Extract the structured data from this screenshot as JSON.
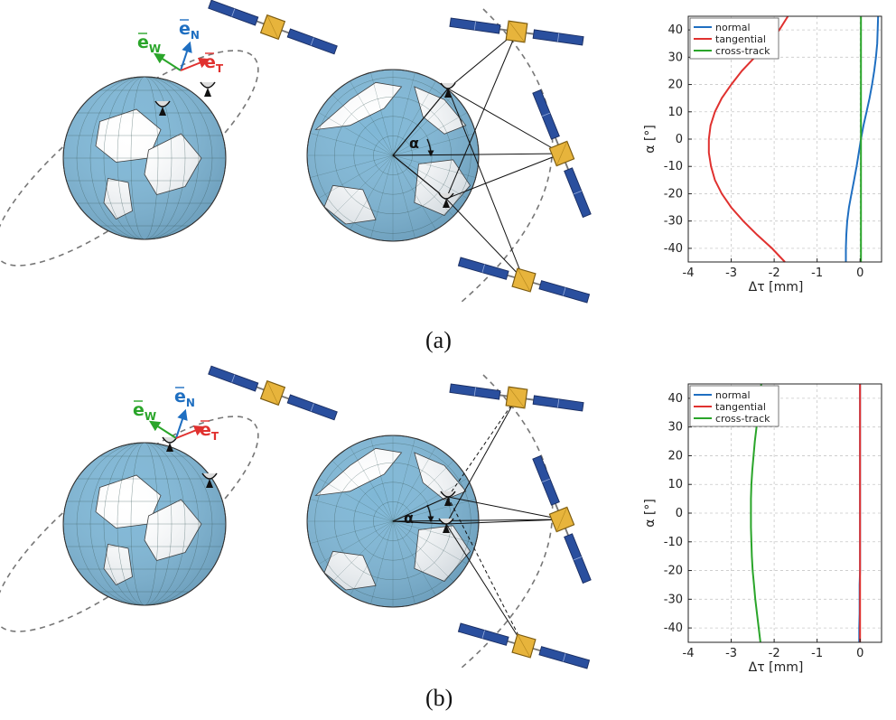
{
  "panels": [
    {
      "label": "(a)",
      "vector_labels": {
        "w": "W",
        "n": "N",
        "t": "T",
        "e": "e"
      },
      "angle_label": "α"
    },
    {
      "label": "(b)",
      "vector_labels": {
        "w": "W",
        "n": "N",
        "t": "T",
        "e": "e"
      },
      "angle_label": "α"
    }
  ],
  "colors": {
    "normal": "#1f6fc1",
    "tangential": "#e0312f",
    "cross_track": "#2aa52a",
    "ocean": "#7fb7d6",
    "panel": "#2a4f9e",
    "sat_body": "#e7b43c"
  },
  "chart_data": [
    {
      "type": "line",
      "xlabel": "Δτ [mm]",
      "ylabel": "α [°]",
      "xlim": [
        -4,
        0.5
      ],
      "ylim": [
        -45,
        45
      ],
      "xticks": [
        -4,
        -3,
        -2,
        -1,
        0
      ],
      "yticks": [
        40,
        30,
        20,
        10,
        0,
        -10,
        -20,
        -30,
        -40
      ],
      "grid": true,
      "legend_position": "top-left",
      "y": [
        -45,
        -40,
        -35,
        -30,
        -25,
        -20,
        -15,
        -10,
        -5,
        0,
        5,
        10,
        15,
        20,
        25,
        30,
        35,
        40,
        45
      ],
      "series": [
        {
          "name": "normal",
          "color_key": "normal",
          "x": [
            -0.33,
            -0.33,
            -0.32,
            -0.3,
            -0.26,
            -0.2,
            -0.14,
            -0.08,
            -0.03,
            0.02,
            0.08,
            0.15,
            0.22,
            0.28,
            0.33,
            0.37,
            0.4,
            0.41,
            0.42
          ]
        },
        {
          "name": "tangential",
          "color_key": "tangential",
          "x": [
            -1.75,
            -2.05,
            -2.4,
            -2.72,
            -3.0,
            -3.22,
            -3.38,
            -3.47,
            -3.52,
            -3.52,
            -3.48,
            -3.38,
            -3.22,
            -3.0,
            -2.75,
            -2.45,
            -2.15,
            -1.88,
            -1.68
          ]
        },
        {
          "name": "cross-track",
          "color_key": "cross_track",
          "x": [
            0.02,
            0.02,
            0.02,
            0.02,
            0.02,
            0.02,
            0.02,
            0.02,
            0.02,
            0.02,
            0.02,
            0.02,
            0.02,
            0.02,
            0.02,
            0.02,
            0.02,
            0.02,
            0.02
          ]
        }
      ]
    },
    {
      "type": "line",
      "xlabel": "Δτ [mm]",
      "ylabel": "α [°]",
      "xlim": [
        -4,
        0.5
      ],
      "ylim": [
        -45,
        45
      ],
      "xticks": [
        -4,
        -3,
        -2,
        -1,
        0
      ],
      "yticks": [
        40,
        30,
        20,
        10,
        0,
        -10,
        -20,
        -30,
        -40
      ],
      "grid": true,
      "legend_position": "top-left",
      "y": [
        -45,
        -40,
        -35,
        -30,
        -25,
        -20,
        -15,
        -10,
        -5,
        0,
        5,
        10,
        15,
        20,
        25,
        30,
        35,
        40,
        45
      ],
      "series": [
        {
          "name": "normal",
          "color_key": "normal",
          "x": [
            -0.02,
            -0.02,
            -0.01,
            -0.01,
            -0.01,
            0.0,
            0.0,
            0.0,
            0.0,
            0.0,
            0.0,
            0.0,
            0.0,
            0.0,
            0.0,
            0.0,
            0.0,
            0.0,
            0.0
          ]
        },
        {
          "name": "tangential",
          "color_key": "tangential",
          "x": [
            0.0,
            0.0,
            0.0,
            0.0,
            0.0,
            0.0,
            0.0,
            0.0,
            0.0,
            0.0,
            0.0,
            0.0,
            0.0,
            0.0,
            0.0,
            0.0,
            0.0,
            0.0,
            0.0
          ]
        },
        {
          "name": "cross-track",
          "color_key": "cross_track",
          "x": [
            -2.32,
            -2.36,
            -2.4,
            -2.44,
            -2.47,
            -2.5,
            -2.52,
            -2.53,
            -2.54,
            -2.54,
            -2.54,
            -2.53,
            -2.51,
            -2.48,
            -2.45,
            -2.41,
            -2.37,
            -2.33,
            -2.3
          ]
        }
      ]
    }
  ]
}
